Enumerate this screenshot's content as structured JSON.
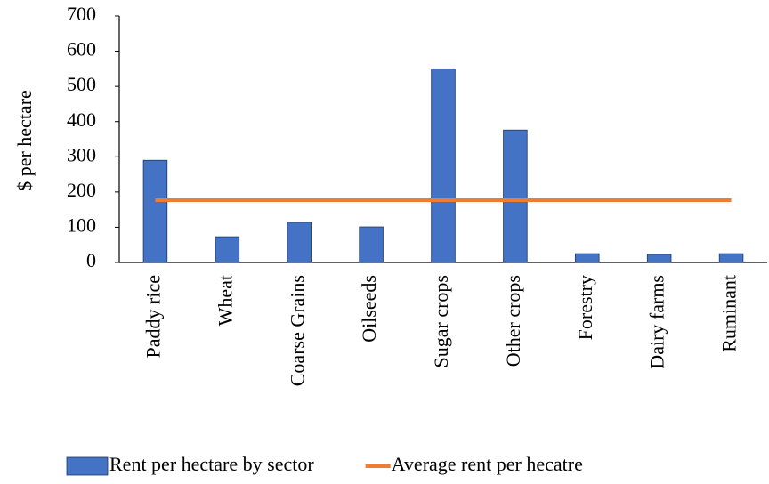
{
  "chart_data": {
    "type": "bar",
    "y_label": "$ per hectare",
    "categories": [
      "Paddy rice",
      "Wheat",
      "Coarse Grains",
      "Oilseeds",
      "Sugar crops",
      "Other crops",
      "Forestry",
      "Dairy farms",
      "Ruminant"
    ],
    "series": [
      {
        "name": "Rent per hectare by sector",
        "type": "bar",
        "color": "#4472c4",
        "values": [
          290,
          73,
          114,
          101,
          550,
          376,
          25,
          23,
          25
        ]
      },
      {
        "name": "Average rent per hecatre",
        "type": "line",
        "color": "#ed7d31",
        "values": [
          177,
          177,
          177,
          177,
          177,
          177,
          177,
          177,
          177
        ]
      }
    ],
    "ylim": [
      0,
      700
    ],
    "yticks": [
      0,
      100,
      200,
      300,
      400,
      500,
      600,
      700
    ],
    "legend": "bottom"
  }
}
